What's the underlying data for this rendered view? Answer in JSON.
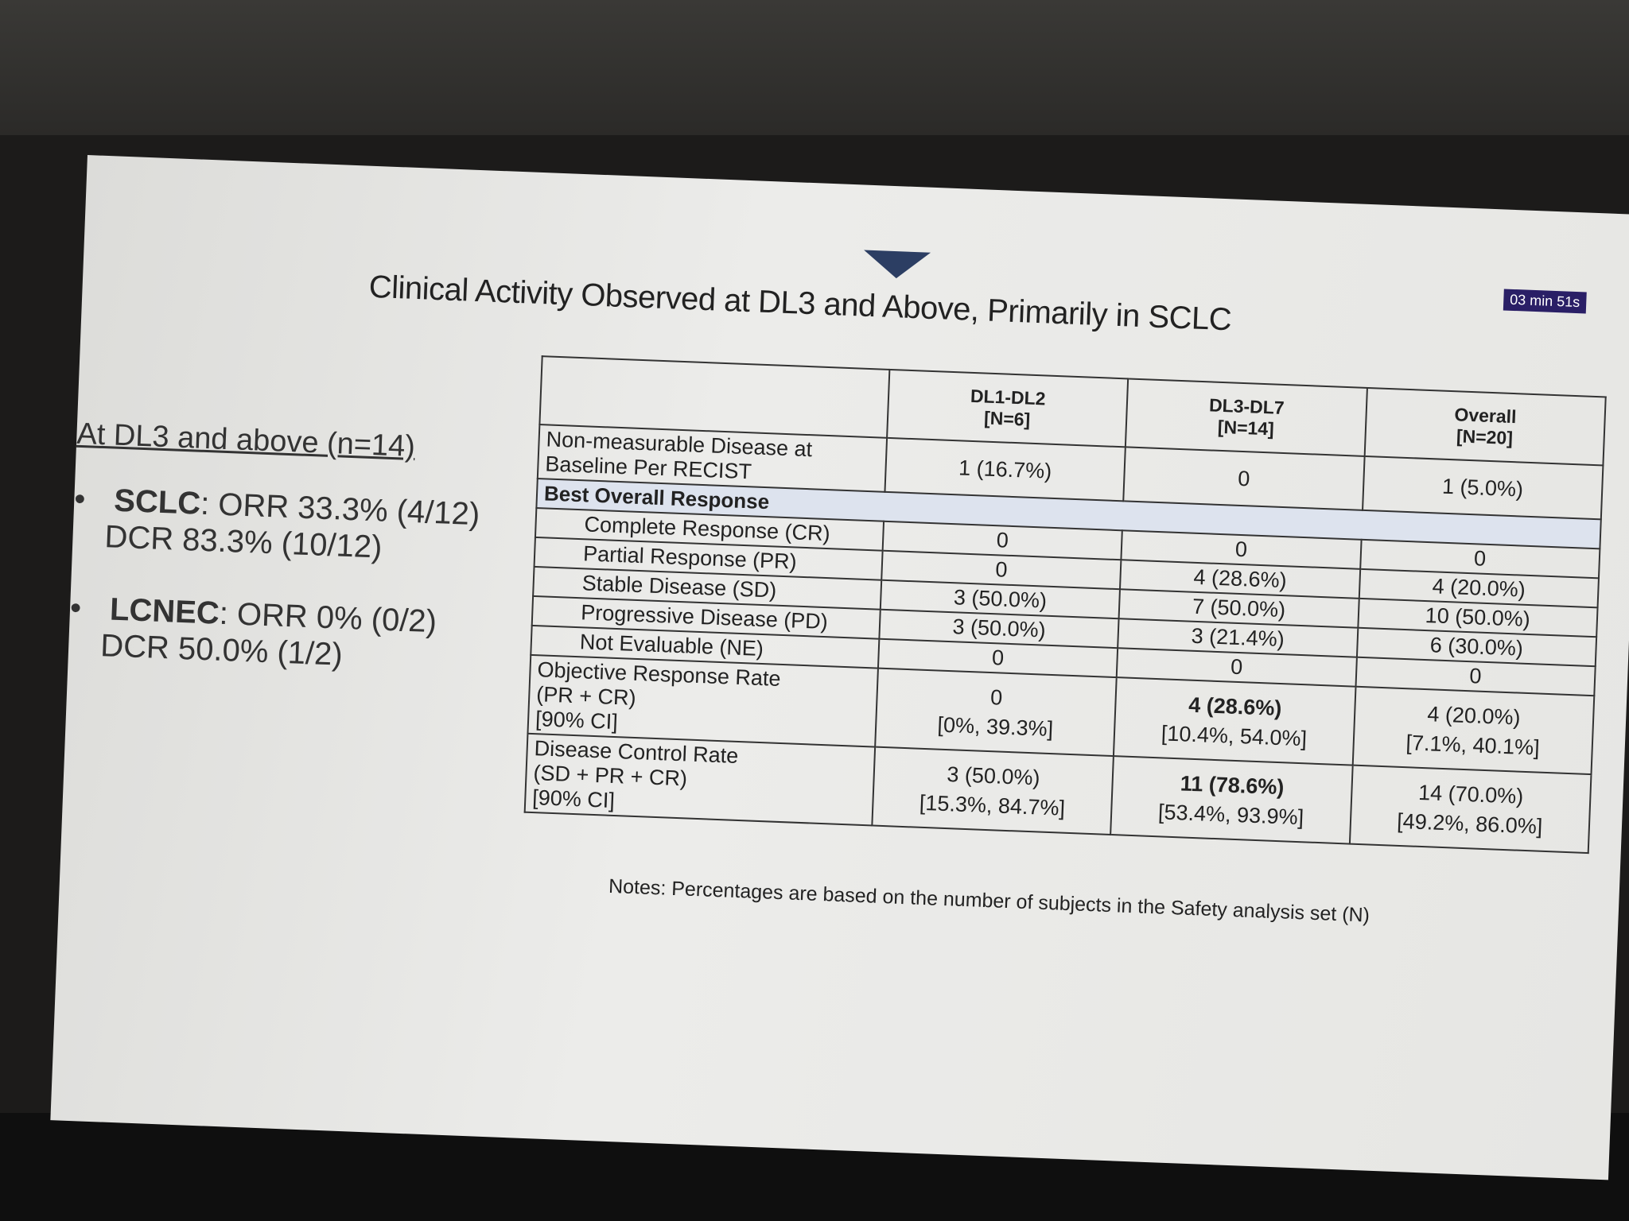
{
  "title": "Clinical Activity Observed at DL3 and Above, Primarily in SCLC",
  "timer": "03 min 51s",
  "left_panel": {
    "heading": "At DL3 and above (n=14)",
    "bullets": [
      {
        "label": "SCLC",
        "text": ": ORR 33.3% (4/12)",
        "line2": "DCR 83.3% (10/12)"
      },
      {
        "label": "LCNEC",
        "text": ": ORR 0% (0/2)",
        "line2": "DCR 50.0% (1/2)"
      }
    ]
  },
  "table": {
    "columns": [
      {
        "name": "DL1-DL2",
        "n": "[N=6]"
      },
      {
        "name": "DL3-DL7",
        "n": "[N=14]"
      },
      {
        "name": "Overall",
        "n": "[N=20]"
      }
    ],
    "rows": [
      {
        "label": [
          "Non-measurable Disease at",
          "Baseline Per RECIST"
        ],
        "cells": [
          {
            "lines": [
              "1 (16.7%)"
            ]
          },
          {
            "lines": [
              "0"
            ]
          },
          {
            "lines": [
              "1 (5.0%)"
            ]
          }
        ]
      },
      {
        "section": "Best Overall Response"
      },
      {
        "label": [
          "Complete Response (CR)"
        ],
        "indent": true,
        "cells": [
          {
            "lines": [
              "0"
            ]
          },
          {
            "lines": [
              "0"
            ]
          },
          {
            "lines": [
              "0"
            ]
          }
        ]
      },
      {
        "label": [
          "Partial Response (PR)"
        ],
        "indent": true,
        "cells": [
          {
            "lines": [
              "0"
            ]
          },
          {
            "lines": [
              "4 (28.6%)"
            ]
          },
          {
            "lines": [
              "4 (20.0%)"
            ]
          }
        ]
      },
      {
        "label": [
          "Stable Disease (SD)"
        ],
        "indent": true,
        "cells": [
          {
            "lines": [
              "3 (50.0%)"
            ]
          },
          {
            "lines": [
              "7 (50.0%)"
            ]
          },
          {
            "lines": [
              "10 (50.0%)"
            ]
          }
        ]
      },
      {
        "label": [
          "Progressive Disease (PD)"
        ],
        "indent": true,
        "cells": [
          {
            "lines": [
              "3 (50.0%)"
            ]
          },
          {
            "lines": [
              "3 (21.4%)"
            ]
          },
          {
            "lines": [
              "6 (30.0%)"
            ]
          }
        ]
      },
      {
        "label": [
          "Not Evaluable (NE)"
        ],
        "indent": true,
        "cells": [
          {
            "lines": [
              "0"
            ]
          },
          {
            "lines": [
              "0"
            ]
          },
          {
            "lines": [
              "0"
            ]
          }
        ]
      },
      {
        "label": [
          "Objective Response Rate",
          "(PR + CR)",
          "[90% CI]"
        ],
        "cells": [
          {
            "lines": [
              "0",
              "[0%, 39.3%]"
            ]
          },
          {
            "lines": [
              "4 (28.6%)",
              "[10.4%, 54.0%]"
            ],
            "bold": true
          },
          {
            "lines": [
              "4 (20.0%)",
              "[7.1%, 40.1%]"
            ]
          }
        ]
      },
      {
        "label": [
          "Disease Control Rate",
          "(SD + PR + CR)",
          "[90% CI]"
        ],
        "cells": [
          {
            "lines": [
              "3 (50.0%)",
              "[15.3%, 84.7%]"
            ]
          },
          {
            "lines": [
              "11 (78.6%)",
              "[53.4%, 93.9%]"
            ],
            "bold": true
          },
          {
            "lines": [
              "14 (70.0%)",
              "[49.2%, 86.0%]"
            ]
          }
        ]
      }
    ]
  },
  "notes": "Notes: Percentages are based on the number of subjects in the Safety analysis set (N)"
}
